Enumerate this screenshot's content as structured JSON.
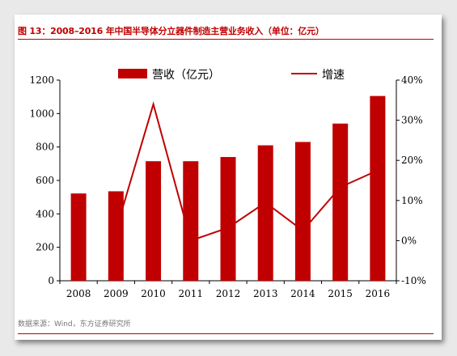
{
  "header": {
    "title": "图 13：2008–2016 年中国半导体分立器件制造主营业务收入（单位：亿元）"
  },
  "footer": {
    "source": "数据来源：Wind，东方证券研究所"
  },
  "colors": {
    "bar": "#c00000",
    "line": "#c00000",
    "title": "#c00000"
  },
  "chart_data": {
    "type": "bar+line",
    "categories": [
      "2008",
      "2009",
      "2010",
      "2011",
      "2012",
      "2013",
      "2014",
      "2015",
      "2016"
    ],
    "series": [
      {
        "name": "营收（亿元）",
        "type": "bar",
        "axis": "left",
        "values": [
          522,
          535,
          715,
          715,
          740,
          810,
          830,
          940,
          1105
        ]
      },
      {
        "name": "增速",
        "type": "line",
        "axis": "right",
        "values": [
          null,
          2.5,
          34.0,
          0.0,
          3.2,
          9.5,
          2.5,
          13.3,
          17.5
        ]
      }
    ],
    "y_left": {
      "range": [
        0,
        1200
      ],
      "ticks": [
        "0",
        "200",
        "400",
        "600",
        "800",
        "1000",
        "1200"
      ]
    },
    "y_right": {
      "range": [
        -10,
        40
      ],
      "ticks": [
        "-10%",
        "0%",
        "10%",
        "20%",
        "30%",
        "40%"
      ]
    },
    "legend_position": "top"
  }
}
